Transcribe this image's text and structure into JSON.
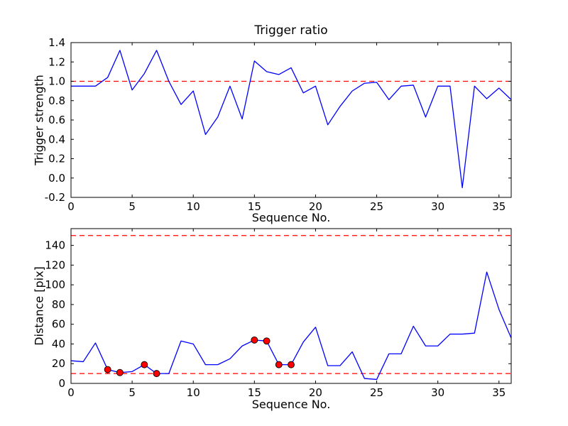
{
  "figure": {
    "background": "#ffffff",
    "frame_color": "#000000"
  },
  "chart_data": [
    {
      "type": "line",
      "title": "Trigger ratio",
      "xlabel": "Sequence No.",
      "ylabel": "Trigger strength",
      "xlim": [
        0,
        36
      ],
      "ylim": [
        -0.2,
        1.4
      ],
      "xticks": [
        0,
        5,
        10,
        15,
        20,
        25,
        30,
        35
      ],
      "xtick_labels": [
        "0",
        "5",
        "10",
        "15",
        "20",
        "25",
        "30",
        "35"
      ],
      "yticks": [
        -0.2,
        0.0,
        0.2,
        0.4,
        0.6,
        0.8,
        1.0,
        1.2,
        1.4
      ],
      "ytick_labels": [
        "-0.2",
        "0.0",
        "0.2",
        "0.4",
        "0.6",
        "0.8",
        "1.0",
        "1.2",
        "1.4"
      ],
      "grid": false,
      "legend": false,
      "line_color": "#0000ff",
      "threshold_color": "#ff0000",
      "thresholds": [
        1.0
      ],
      "x": [
        0,
        1,
        2,
        3,
        4,
        5,
        6,
        7,
        8,
        9,
        10,
        11,
        12,
        13,
        14,
        15,
        16,
        17,
        18,
        19,
        20,
        21,
        22,
        23,
        24,
        25,
        26,
        27,
        28,
        29,
        30,
        31,
        32,
        33,
        34,
        35,
        36
      ],
      "y": [
        0.95,
        0.95,
        0.95,
        1.04,
        1.32,
        0.91,
        1.08,
        1.32,
        1.0,
        0.76,
        0.9,
        0.45,
        0.63,
        0.95,
        0.61,
        1.21,
        1.1,
        1.07,
        1.14,
        0.88,
        0.95,
        0.55,
        0.74,
        0.9,
        0.98,
        0.99,
        0.81,
        0.95,
        0.96,
        0.63,
        0.95,
        0.95,
        -0.1,
        0.95,
        0.82,
        0.93,
        0.81
      ],
      "markers": []
    },
    {
      "type": "line",
      "title": "",
      "xlabel": "Sequence No.",
      "ylabel": "Distance [pix]",
      "xlim": [
        0,
        36
      ],
      "ylim": [
        0,
        157
      ],
      "xticks": [
        0,
        5,
        10,
        15,
        20,
        25,
        30,
        35
      ],
      "xtick_labels": [
        "0",
        "5",
        "10",
        "15",
        "20",
        "25",
        "30",
        "35"
      ],
      "yticks": [
        0,
        20,
        40,
        60,
        80,
        100,
        120,
        140
      ],
      "ytick_labels": [
        "0",
        "20",
        "40",
        "60",
        "80",
        "100",
        "120",
        "140"
      ],
      "grid": false,
      "legend": false,
      "line_color": "#0000ff",
      "threshold_color": "#ff0000",
      "thresholds": [
        150,
        10
      ],
      "marker_color": "#ff0000",
      "x": [
        0,
        1,
        2,
        3,
        4,
        5,
        6,
        7,
        8,
        9,
        10,
        11,
        12,
        13,
        14,
        15,
        16,
        17,
        18,
        19,
        20,
        21,
        22,
        23,
        24,
        25,
        26,
        27,
        28,
        29,
        30,
        31,
        32,
        33,
        34,
        35,
        36
      ],
      "y": [
        23,
        22,
        41,
        14,
        11,
        12,
        19,
        10,
        10,
        43,
        40,
        19,
        19,
        25,
        38,
        44,
        43,
        19,
        19,
        42,
        57,
        18,
        18,
        32,
        5,
        4,
        30,
        30,
        58,
        38,
        38,
        50,
        50,
        51,
        113,
        75,
        46
      ],
      "markers": [
        [
          3,
          14
        ],
        [
          4,
          11
        ],
        [
          6,
          19
        ],
        [
          7,
          10
        ],
        [
          15,
          44
        ],
        [
          16,
          43
        ],
        [
          17,
          19
        ],
        [
          18,
          19
        ]
      ]
    }
  ]
}
